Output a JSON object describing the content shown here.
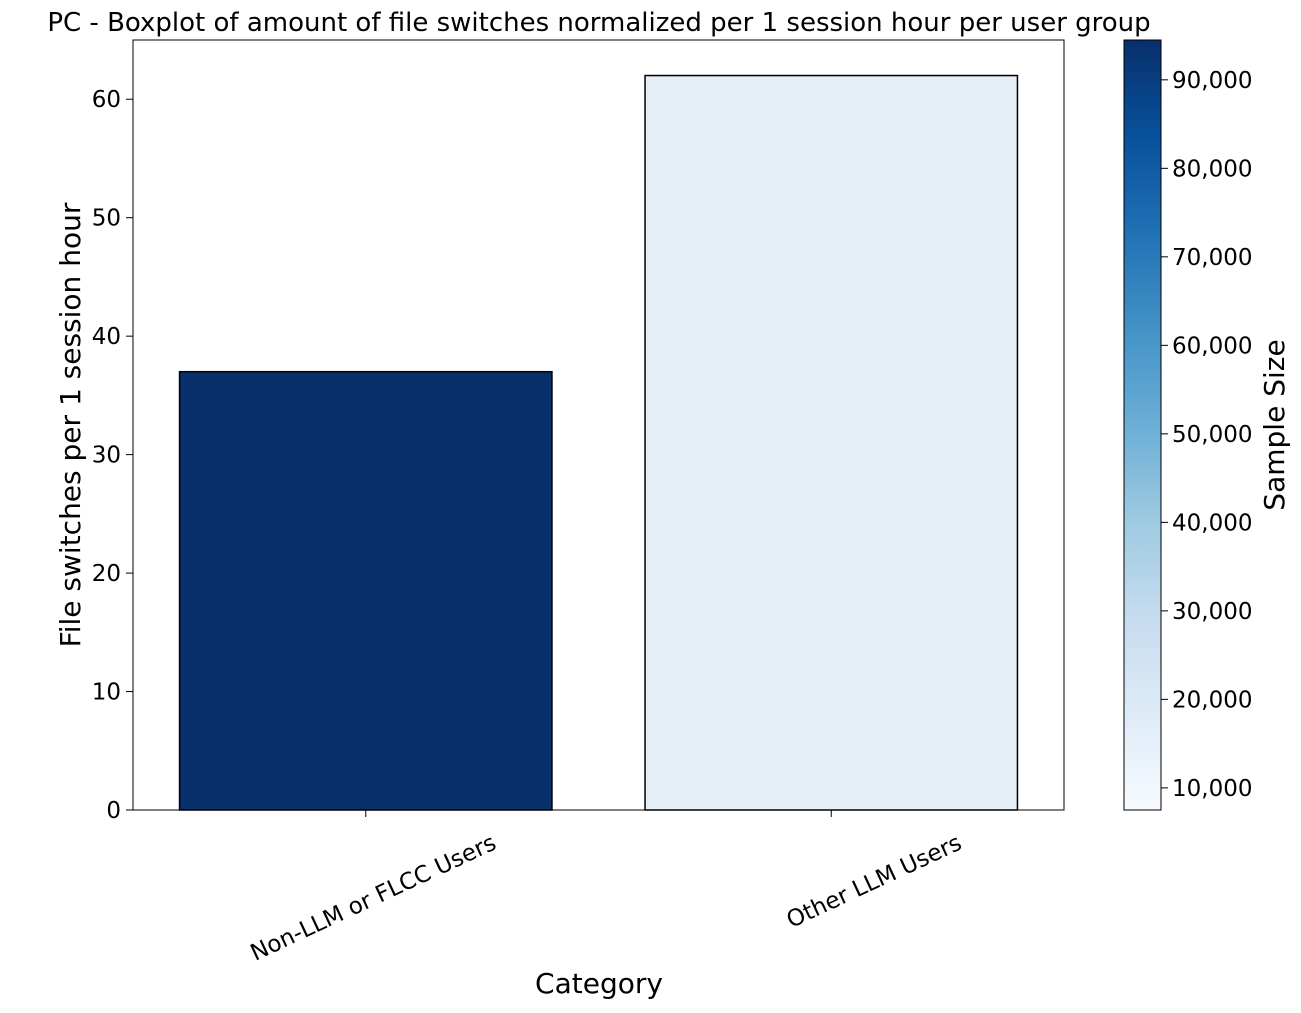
{
  "chart_data": {
    "type": "bar",
    "title": "PC - Boxplot of amount of file switches normalized per 1 session hour per user group",
    "xlabel": "Category",
    "ylabel": "File switches per 1 session hour",
    "categories": [
      "Non-LLM or FLCC Users",
      "Other LLM Users"
    ],
    "values": [
      37,
      62
    ],
    "ylim": [
      0,
      65
    ],
    "yticks": [
      0,
      10,
      20,
      30,
      40,
      50,
      60
    ],
    "bar_colors": [
      "#08306b",
      "#e6eef8"
    ],
    "bar_edge_color": "#000000",
    "grid": false,
    "colorbar": {
      "label": "Sample Size",
      "range": [
        7500,
        94500
      ],
      "ticks": [
        10000,
        20000,
        30000,
        40000,
        50000,
        60000,
        70000,
        80000,
        90000
      ],
      "tick_labels": [
        "10,000",
        "20,000",
        "30,000",
        "40,000",
        "50,000",
        "60,000",
        "70,000",
        "80,000",
        "90,000"
      ],
      "colormap": "Blues",
      "colormap_stops": [
        "#f7fbff",
        "#deebf7",
        "#c6dbef",
        "#9ecae1",
        "#6baed6",
        "#4292c6",
        "#2171b5",
        "#08519c",
        "#08306b"
      ]
    }
  }
}
